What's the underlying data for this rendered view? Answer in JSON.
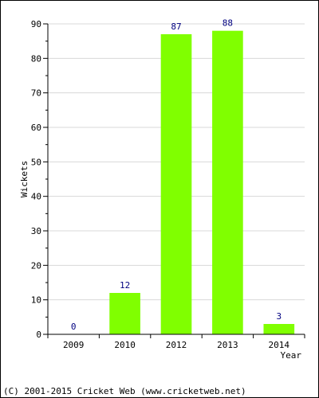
{
  "chart_data": {
    "type": "bar",
    "categories": [
      "2009",
      "2010",
      "2012",
      "2013",
      "2014"
    ],
    "values": [
      0,
      12,
      87,
      88,
      3
    ],
    "xlabel": "Year",
    "ylabel": "Wickets",
    "ylim": [
      0,
      90
    ],
    "yticks": [
      0,
      10,
      20,
      30,
      40,
      50,
      60,
      70,
      80,
      90
    ],
    "grid": true,
    "legend": "none",
    "bar_color": "#80ff00",
    "data_label_color": "#000080"
  },
  "footer": "(C) 2001-2015 Cricket Web (www.cricketweb.net)"
}
